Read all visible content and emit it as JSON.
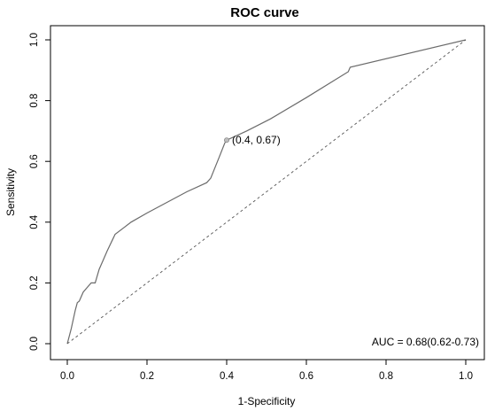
{
  "chart_data": {
    "type": "line",
    "title": "ROC curve",
    "xlabel": "1-Specificity",
    "ylabel": "Sensitivity",
    "xlim": [
      0,
      1
    ],
    "ylim": [
      0,
      1
    ],
    "x_ticks": [
      0.0,
      0.2,
      0.4,
      0.6,
      0.8,
      1.0
    ],
    "y_ticks": [
      0.0,
      0.2,
      0.4,
      0.6,
      0.8,
      1.0
    ],
    "x_tick_labels": [
      "0.0",
      "0.2",
      "0.4",
      "0.6",
      "0.8",
      "1.0"
    ],
    "y_tick_labels": [
      "0.0",
      "0.2",
      "0.4",
      "0.6",
      "0.8",
      "1.0"
    ],
    "grid": false,
    "series": [
      {
        "style": "solid",
        "color": "#6b6b6b",
        "x": [
          0.0,
          0.01,
          0.02,
          0.025,
          0.03,
          0.04,
          0.05,
          0.06,
          0.07,
          0.08,
          0.09,
          0.1,
          0.12,
          0.14,
          0.16,
          0.2,
          0.25,
          0.3,
          0.35,
          0.36,
          0.38,
          0.395,
          0.4,
          0.45,
          0.51,
          0.6,
          0.705,
          0.71,
          1.0
        ],
        "y": [
          0.0,
          0.05,
          0.11,
          0.135,
          0.14,
          0.17,
          0.185,
          0.2,
          0.2,
          0.245,
          0.275,
          0.305,
          0.36,
          0.38,
          0.4,
          0.43,
          0.465,
          0.5,
          0.53,
          0.545,
          0.61,
          0.66,
          0.67,
          0.7,
          0.74,
          0.81,
          0.895,
          0.91,
          1.0
        ]
      },
      {
        "style": "dashed",
        "color": "#555555",
        "x": [
          0,
          1
        ],
        "y": [
          0,
          1
        ]
      }
    ],
    "highlight_point": {
      "x": 0.4,
      "y": 0.67,
      "label": "(0.4, 0.67)"
    },
    "annotation": "AUC = 0.68(0.62-0.73)"
  }
}
